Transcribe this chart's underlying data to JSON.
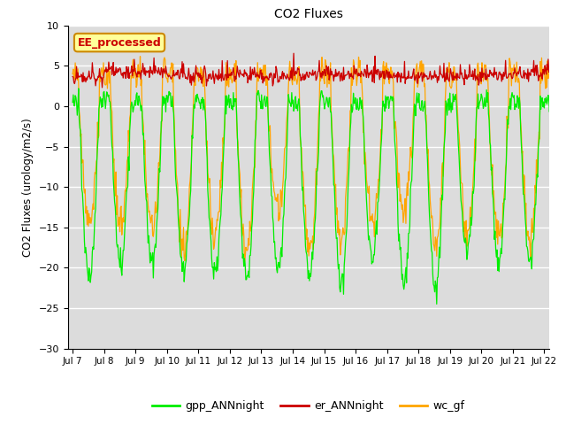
{
  "title": "CO2 Fluxes",
  "ylabel": "CO2 Fluxes (urology/m2/s)",
  "ylim": [
    -30,
    10
  ],
  "yticks": [
    -30,
    -25,
    -20,
    -15,
    -10,
    -5,
    0,
    5,
    10
  ],
  "background_color": "#dcdcdc",
  "gpp_color": "#00ee00",
  "er_color": "#cc0000",
  "wc_color": "#ffa500",
  "legend_labels": [
    "gpp_ANNnight",
    "er_ANNnight",
    "wc_gf"
  ],
  "annotation_text": "EE_processed",
  "annotation_color": "#cc0000",
  "annotation_bg": "#ffff99",
  "annotation_border": "#cc8800",
  "n_days": 16,
  "points_per_day": 48,
  "start_day": 7
}
